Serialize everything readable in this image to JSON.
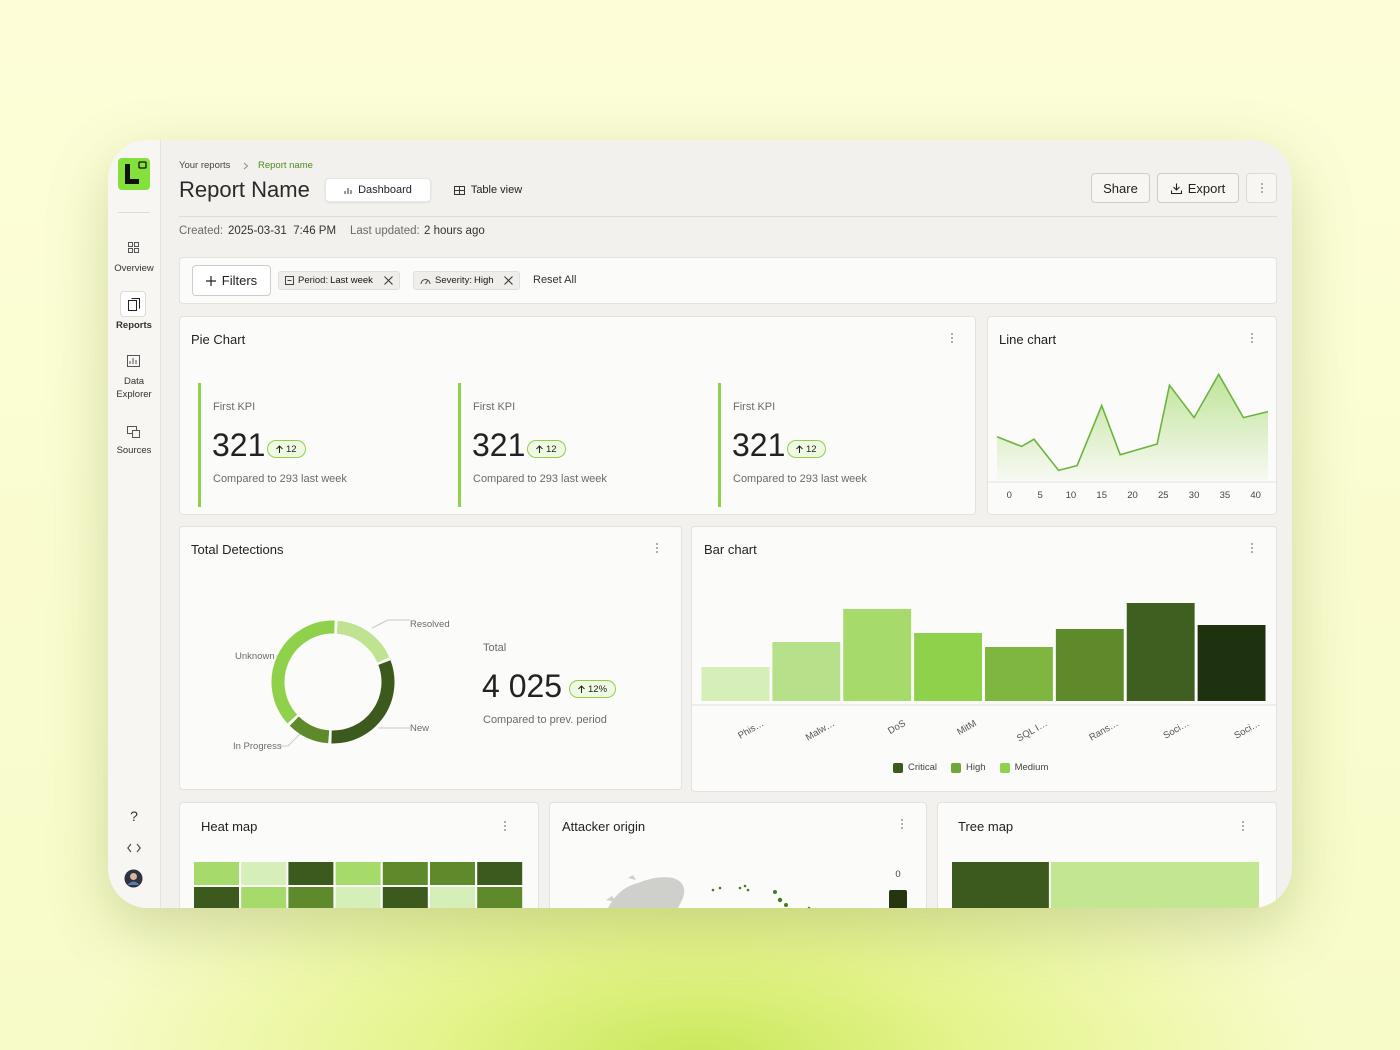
{
  "breadcrumb": [
    "Your reports",
    "Report name"
  ],
  "title": "Report Name",
  "tabs": [
    "Dashboard",
    "Table view"
  ],
  "actions": [
    "Share",
    "Export"
  ],
  "nav": [
    "Overview",
    "Reports",
    "Data Explorer",
    "Sources"
  ],
  "help": "?",
  "meta": {
    "created_label": "Created:",
    "created": "2025-03-31  7:46 PM",
    "updated_label": "Last updated:",
    "updated": "2 hours ago"
  },
  "filters": {
    "button": "Filters",
    "chips": [
      {
        "key": "Period:",
        "value": "Last week"
      },
      {
        "key": "Severity:",
        "value": "High"
      }
    ],
    "reset": "Reset All"
  },
  "kpi_panel": {
    "title": "Pie Chart",
    "kpis": [
      {
        "label": "First KPI",
        "value": 321,
        "delta": 12,
        "note": "Compared to 293 last week"
      },
      {
        "label": "First KPI",
        "value": 321,
        "delta": 12,
        "note": "Compared to 293 last week"
      },
      {
        "label": "First KPI",
        "value": 321,
        "delta": 12,
        "note": "Compared to 293 last week"
      }
    ]
  },
  "line_chart": {
    "type": "line",
    "title": "Line chart",
    "color": "#6db33f",
    "x": [
      -2,
      2,
      4,
      8,
      11,
      15,
      18,
      24,
      26,
      30,
      34,
      38,
      42
    ],
    "values": [
      36,
      28,
      34,
      8,
      12,
      62,
      21,
      30,
      79,
      52,
      88,
      52,
      57
    ],
    "xlim": [
      -2,
      42
    ],
    "xticks": [
      0,
      5,
      10,
      15,
      20,
      25,
      30,
      35,
      40
    ],
    "ylim": [
      0,
      100
    ]
  },
  "donut": {
    "type": "pie",
    "title": "Total Detections",
    "labels": [
      "Resolved",
      "New",
      "In Progress",
      "Unknown"
    ],
    "values": [
      18,
      32,
      12,
      38
    ],
    "colors": [
      "#bfe391",
      "#3d5a1e",
      "#5e8a2c",
      "#8fd14a"
    ],
    "total_label": "Total",
    "total": "4 025",
    "delta": "12%",
    "note": "Compared to prev. period"
  },
  "bar_chart": {
    "type": "bar",
    "title": "Bar chart",
    "categories": [
      "Phis…",
      "Malw…",
      "DoS",
      "MitM",
      "SQL I…",
      "Rans…",
      "Soci…",
      "Soci…"
    ],
    "values": [
      34,
      59,
      92,
      68,
      54,
      72,
      98,
      76
    ],
    "colors": [
      "#d6efb8",
      "#b7e08a",
      "#a6db6c",
      "#8fd14a",
      "#7fb640",
      "#5e8a2c",
      "#3e5f1f",
      "#1f3210"
    ],
    "ylim": [
      0,
      100
    ],
    "legend": [
      {
        "name": "Critical",
        "color": "#3d5a1e"
      },
      {
        "name": "High",
        "color": "#6fa83a"
      },
      {
        "name": "Medium",
        "color": "#8fd14a"
      }
    ]
  },
  "heat_map": {
    "type": "heatmap",
    "title": "Heat map",
    "zlim": [
      1,
      4
    ],
    "colorscale": [
      "#d6efb8",
      "#a6db6c",
      "#5e8a2c",
      "#3d5a1e"
    ],
    "values": [
      [
        2,
        1,
        4,
        2,
        3,
        3,
        4
      ],
      [
        4,
        2,
        3,
        1,
        4,
        1,
        3
      ]
    ]
  },
  "attacker_origin": {
    "type": "map",
    "title": "Attacker origin",
    "legend_ticks": [
      0
    ]
  },
  "tree_map": {
    "type": "treemap",
    "title": "Tree map",
    "values": [
      32,
      68
    ],
    "colors": [
      "#3d5a1e",
      "#c2e691"
    ]
  }
}
